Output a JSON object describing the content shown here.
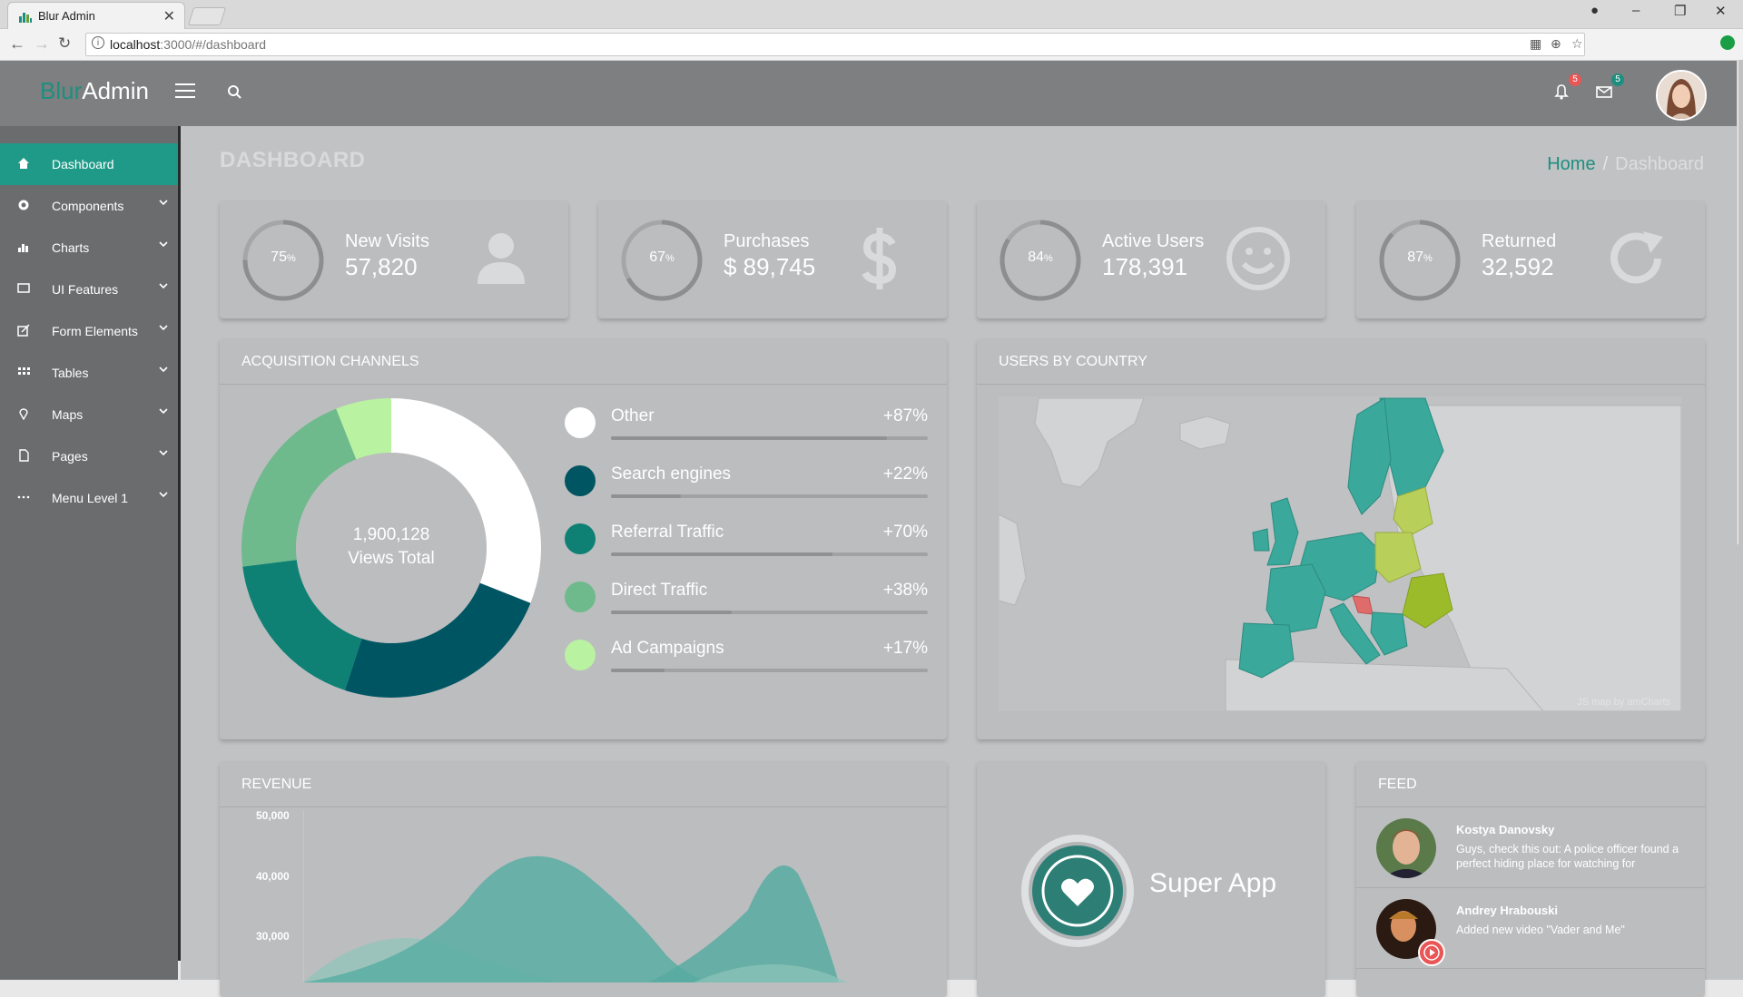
{
  "browser": {
    "tab_title": "Blur Admin",
    "url_host": "localhost",
    "url_rest": ":3000/#/dashboard"
  },
  "header": {
    "logo_blur": "Blur",
    "logo_admin": "Admin",
    "search_placeholder": "",
    "notifications_count": "5",
    "messages_count": "5"
  },
  "sidebar": {
    "items": [
      {
        "label": "Dashboard",
        "icon": "home-icon",
        "active": true
      },
      {
        "label": "Components",
        "icon": "gear-icon"
      },
      {
        "label": "Charts",
        "icon": "bar-chart-icon"
      },
      {
        "label": "UI Features",
        "icon": "monitor-icon"
      },
      {
        "label": "Form Elements",
        "icon": "edit-icon"
      },
      {
        "label": "Tables",
        "icon": "grid-icon"
      },
      {
        "label": "Maps",
        "icon": "map-pin-icon"
      },
      {
        "label": "Pages",
        "icon": "file-icon"
      },
      {
        "label": "Menu Level 1",
        "icon": "ellipsis-icon"
      }
    ]
  },
  "page": {
    "title": "DASHBOARD",
    "breadcrumb_home": "Home",
    "breadcrumb_sep": "/",
    "breadcrumb_current": "Dashboard"
  },
  "stats": [
    {
      "label": "New Visits",
      "value": "57,820",
      "percent": "75",
      "unit": "%",
      "icon": "user-icon"
    },
    {
      "label": "Purchases",
      "value": "$ 89,745",
      "percent": "67",
      "unit": "%",
      "icon": "dollar-icon"
    },
    {
      "label": "Active Users",
      "value": "178,391",
      "percent": "84",
      "unit": "%",
      "icon": "smile-icon"
    },
    {
      "label": "Returned",
      "value": "32,592",
      "percent": "87",
      "unit": "%",
      "icon": "refresh-icon"
    }
  ],
  "acquisition": {
    "title": "ACQUISITION CHANNELS",
    "center_value": "1,900,128",
    "center_label": "Views Total",
    "channels": [
      {
        "label": "Other",
        "value": "+87%",
        "color": "#ffffff",
        "share": 0.31,
        "bar": 0.87
      },
      {
        "label": "Search engines",
        "value": "+22%",
        "color": "#005562",
        "share": 0.24,
        "bar": 0.22
      },
      {
        "label": "Referral Traffic",
        "value": "+70%",
        "color": "#0e8174",
        "share": 0.18,
        "bar": 0.7
      },
      {
        "label": "Direct Traffic",
        "value": "+38%",
        "color": "#6eba8c",
        "share": 0.21,
        "bar": 0.38
      },
      {
        "label": "Ad Campaigns",
        "value": "+17%",
        "color": "#b9f2a1",
        "share": 0.06,
        "bar": 0.17
      }
    ]
  },
  "users_by_country": {
    "title": "USERS BY COUNTRY",
    "credit": "JS map by amCharts"
  },
  "revenue": {
    "title": "REVENUE",
    "y_ticks": [
      "50,000",
      "40,000",
      "30,000"
    ]
  },
  "super_app": {
    "label": "Super App"
  },
  "feed": {
    "title": "FEED",
    "items": [
      {
        "name": "Kostya Danovsky",
        "text": "Guys, check this out: A police officer found a perfect hiding place for watching for"
      },
      {
        "name": "Andrey Hrabouski",
        "text": "Added new video \"Vader and Me\""
      }
    ]
  }
}
